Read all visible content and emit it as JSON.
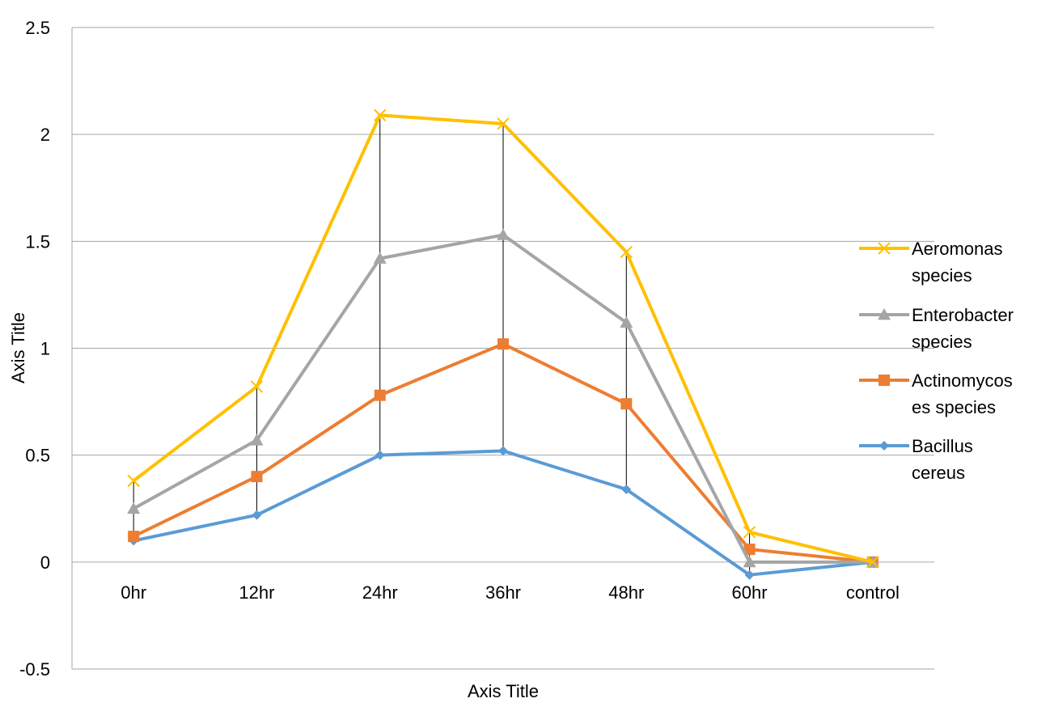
{
  "chart_data": {
    "type": "line",
    "categories": [
      "0hr",
      "12hr",
      "24hr",
      "36hr",
      "48hr",
      "60hr",
      "control"
    ],
    "xlabel": "Axis Title",
    "ylabel": "Axis Title",
    "ylim": [
      -0.5,
      2.5
    ],
    "yticks": [
      "2.5",
      "2",
      "1.5",
      "1",
      "0.5",
      "0",
      "-0.5"
    ],
    "grid": true,
    "legend_position": "right",
    "high_low_lines": true,
    "series": [
      {
        "name": "Aeromonas species",
        "legend_lines": [
          "Aeromonas",
          "species"
        ],
        "color": "#FFC000",
        "marker": "x",
        "values": [
          0.38,
          0.82,
          2.09,
          2.05,
          1.45,
          0.14,
          0.0
        ]
      },
      {
        "name": "Enterobacter species",
        "legend_lines": [
          "Enterobacter",
          "species"
        ],
        "color": "#A5A5A5",
        "marker": "triangle",
        "values": [
          0.25,
          0.57,
          1.42,
          1.53,
          1.12,
          0.0,
          0.0
        ]
      },
      {
        "name": "Actinomycoses species",
        "legend_lines": [
          "Actinomycos",
          "es species"
        ],
        "color": "#ED7D31",
        "marker": "square",
        "values": [
          0.12,
          0.4,
          0.78,
          1.02,
          0.74,
          0.06,
          0.0
        ]
      },
      {
        "name": "Bacillus cereus",
        "legend_lines": [
          "Bacillus",
          "cereus"
        ],
        "color": "#5B9BD5",
        "marker": "diamond",
        "values": [
          0.1,
          0.22,
          0.5,
          0.52,
          0.34,
          -0.06,
          0.0
        ]
      }
    ]
  }
}
